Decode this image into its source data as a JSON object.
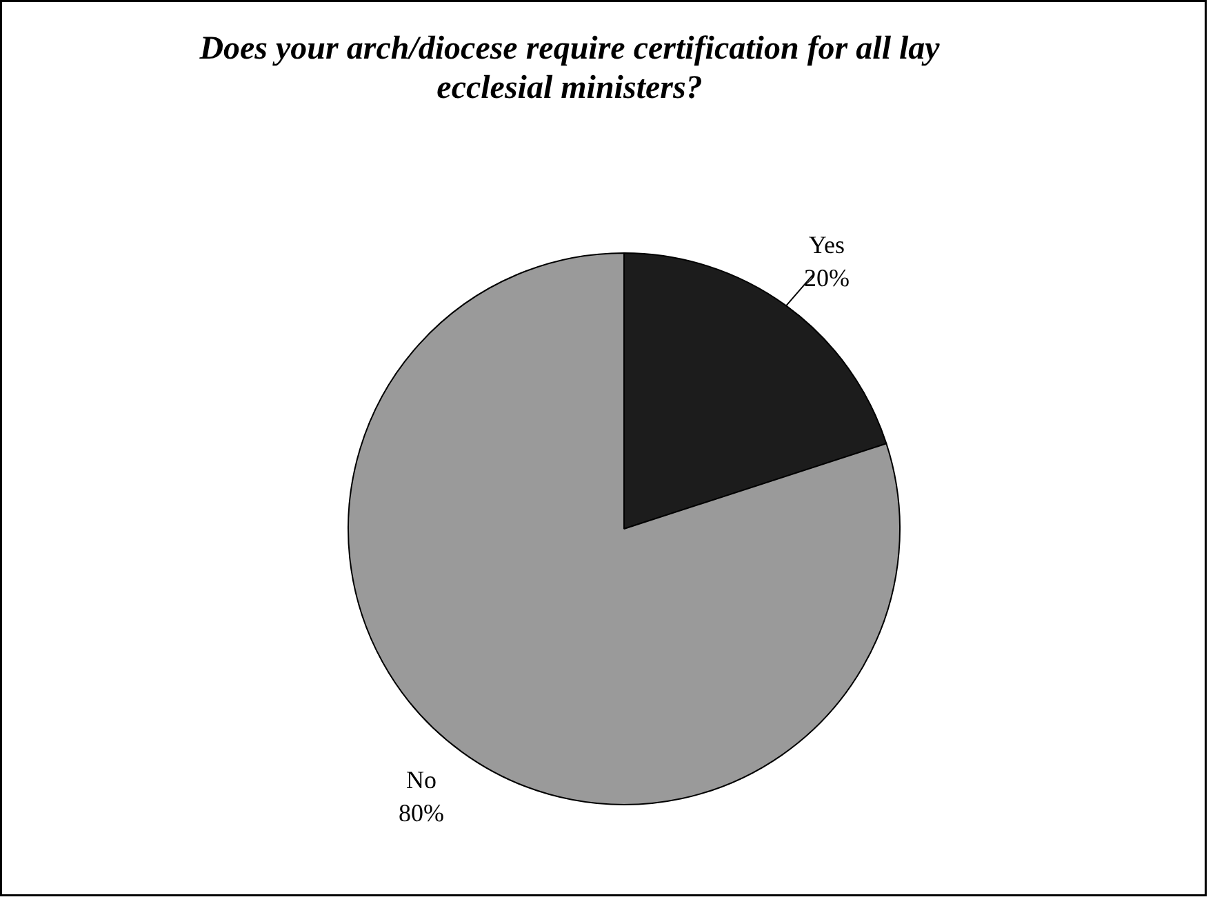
{
  "chart_data": {
    "type": "pie",
    "title": "Does your arch/diocese require certification for all lay ecclesial ministers?",
    "categories": [
      "Yes",
      "No"
    ],
    "values": [
      20,
      80
    ],
    "colors": [
      "#1c1c1c",
      "#9a9a9a"
    ],
    "value_labels": [
      "20%",
      "80%"
    ]
  }
}
